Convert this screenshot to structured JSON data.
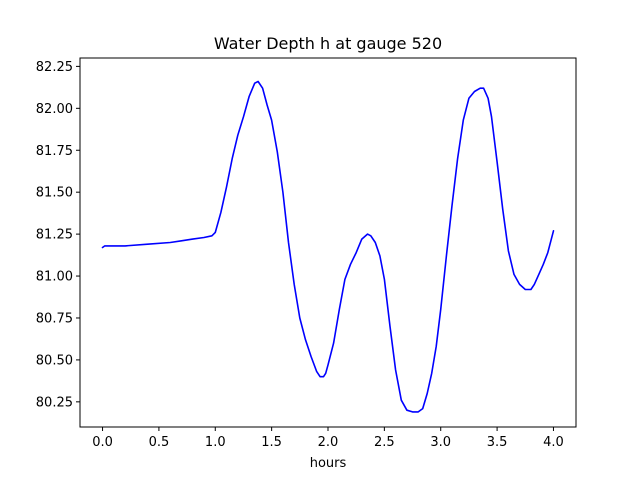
{
  "chart_data": {
    "type": "line",
    "title": "Water Depth h at gauge 520",
    "xlabel": "hours",
    "ylabel": "",
    "xlim": [
      -0.2,
      4.2
    ],
    "ylim": [
      80.1,
      82.3
    ],
    "x_ticks": [
      {
        "value": 0.0,
        "label": "0.0"
      },
      {
        "value": 0.5,
        "label": "0.5"
      },
      {
        "value": 1.0,
        "label": "1.0"
      },
      {
        "value": 1.5,
        "label": "1.5"
      },
      {
        "value": 2.0,
        "label": "2.0"
      },
      {
        "value": 2.5,
        "label": "2.5"
      },
      {
        "value": 3.0,
        "label": "3.0"
      },
      {
        "value": 3.5,
        "label": "3.5"
      },
      {
        "value": 4.0,
        "label": "4.0"
      }
    ],
    "y_ticks": [
      {
        "value": 80.25,
        "label": "80.25"
      },
      {
        "value": 80.5,
        "label": "80.50"
      },
      {
        "value": 80.75,
        "label": "80.75"
      },
      {
        "value": 81.0,
        "label": "81.00"
      },
      {
        "value": 81.25,
        "label": "81.25"
      },
      {
        "value": 81.5,
        "label": "81.50"
      },
      {
        "value": 81.75,
        "label": "81.75"
      },
      {
        "value": 82.0,
        "label": "82.00"
      },
      {
        "value": 82.25,
        "label": "82.25"
      }
    ],
    "grid": false,
    "series": [
      {
        "color": "#0000ff",
        "x": [
          0.0,
          0.02,
          0.2,
          0.4,
          0.6,
          0.7,
          0.8,
          0.9,
          0.97,
          1.0,
          1.05,
          1.1,
          1.15,
          1.2,
          1.25,
          1.3,
          1.35,
          1.38,
          1.42,
          1.46,
          1.5,
          1.55,
          1.6,
          1.65,
          1.7,
          1.75,
          1.8,
          1.85,
          1.9,
          1.93,
          1.96,
          1.98,
          2.0,
          2.05,
          2.1,
          2.15,
          2.2,
          2.25,
          2.3,
          2.35,
          2.38,
          2.42,
          2.46,
          2.5,
          2.55,
          2.6,
          2.65,
          2.7,
          2.75,
          2.8,
          2.84,
          2.88,
          2.92,
          2.96,
          3.0,
          3.05,
          3.1,
          3.15,
          3.2,
          3.25,
          3.3,
          3.35,
          3.38,
          3.42,
          3.45,
          3.5,
          3.55,
          3.6,
          3.65,
          3.7,
          3.75,
          3.8,
          3.83,
          3.87,
          3.91,
          3.95,
          4.0
        ],
        "y": [
          81.17,
          81.18,
          81.18,
          81.19,
          81.2,
          81.21,
          81.22,
          81.23,
          81.24,
          81.26,
          81.38,
          81.53,
          81.7,
          81.84,
          81.95,
          82.07,
          82.15,
          82.16,
          82.12,
          82.02,
          81.93,
          81.74,
          81.5,
          81.2,
          80.95,
          80.75,
          80.62,
          80.52,
          80.43,
          80.4,
          80.4,
          80.42,
          80.47,
          80.6,
          80.8,
          80.98,
          81.07,
          81.14,
          81.22,
          81.25,
          81.24,
          81.2,
          81.12,
          80.98,
          80.7,
          80.44,
          80.26,
          80.2,
          80.19,
          80.19,
          80.21,
          80.3,
          80.42,
          80.58,
          80.8,
          81.12,
          81.42,
          81.7,
          81.93,
          82.06,
          82.1,
          82.12,
          82.12,
          82.06,
          81.95,
          81.68,
          81.4,
          81.15,
          81.01,
          80.95,
          80.92,
          80.92,
          80.95,
          81.01,
          81.07,
          81.14,
          81.27
        ]
      }
    ]
  }
}
